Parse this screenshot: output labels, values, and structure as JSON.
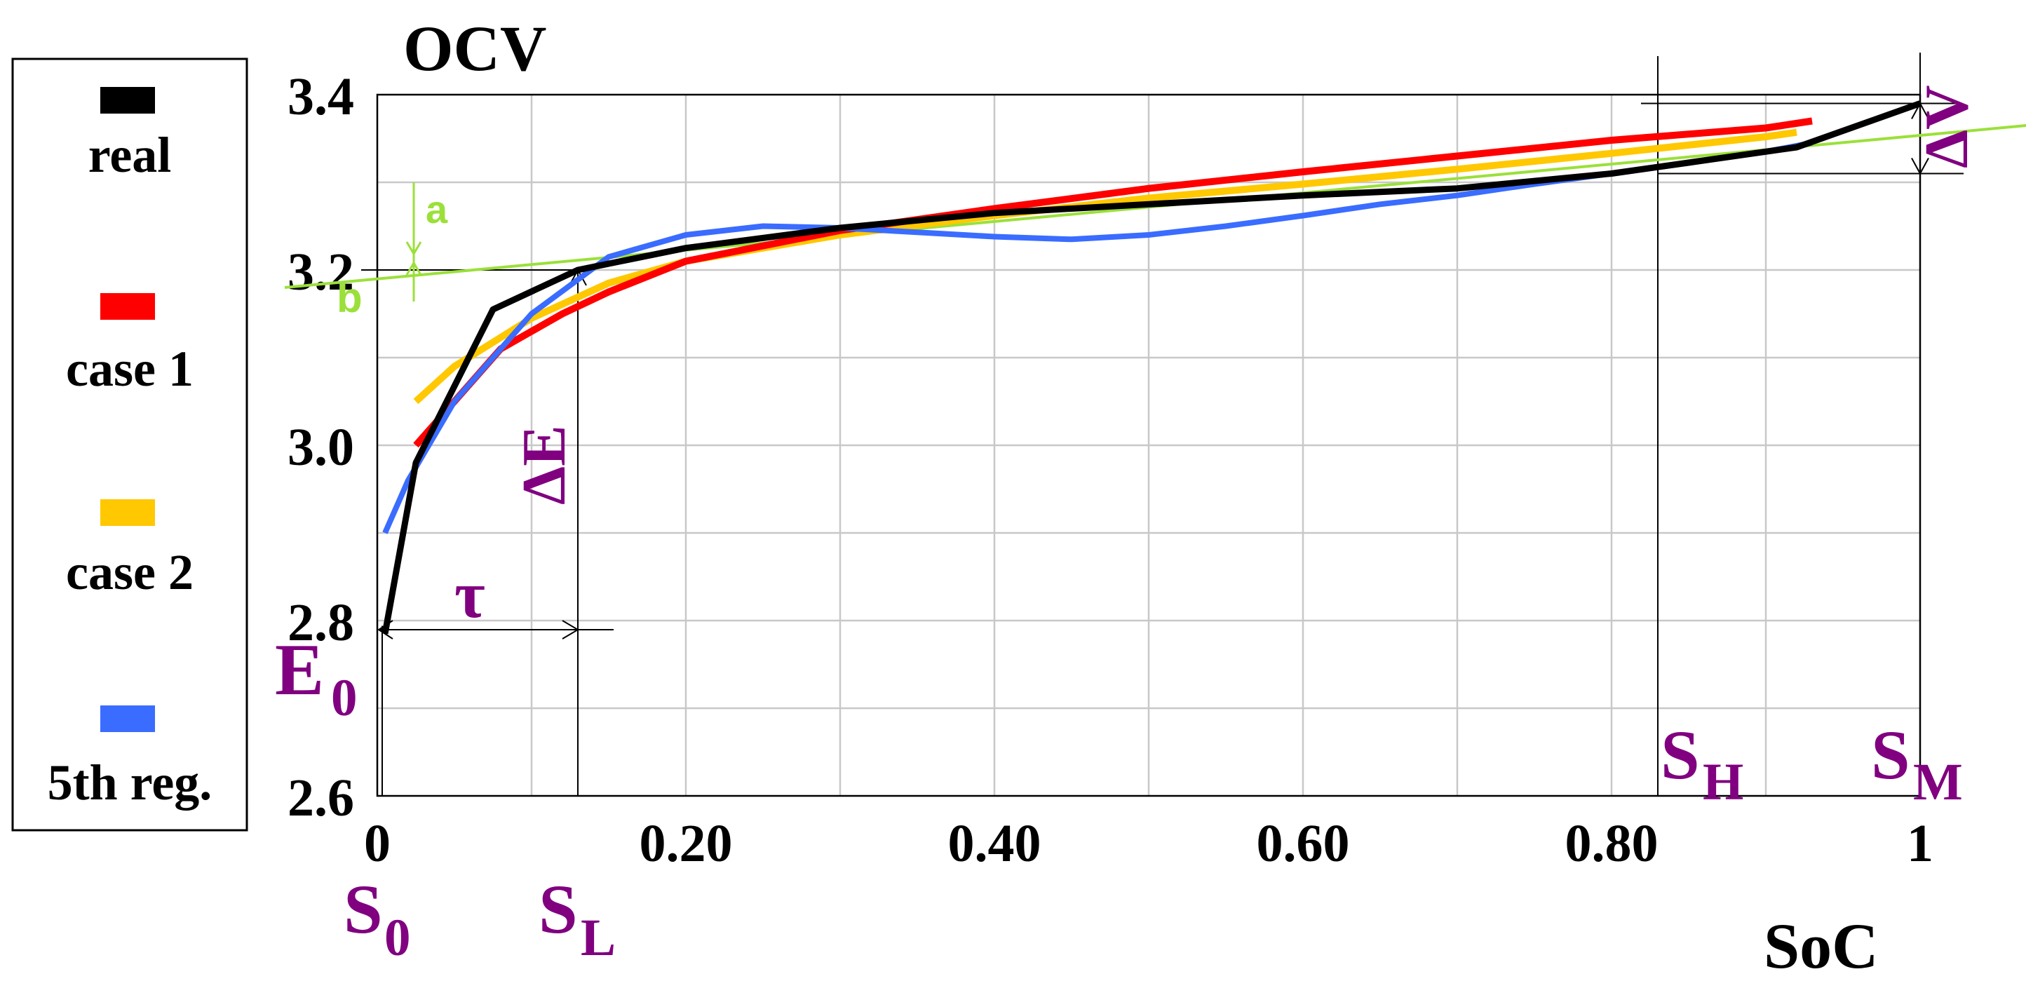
{
  "chart_data": {
    "type": "line",
    "title": "",
    "ylabel": "OCV",
    "xlabel": "SoC",
    "xlim": [
      0,
      1
    ],
    "ylim": [
      2.6,
      3.4
    ],
    "x_ticks": [
      {
        "value": 0,
        "label": "0"
      },
      {
        "value": 0.2,
        "label": "0.20"
      },
      {
        "value": 0.4,
        "label": "0.40"
      },
      {
        "value": 0.6,
        "label": "0.60"
      },
      {
        "value": 0.8,
        "label": "0.80"
      },
      {
        "value": 1,
        "label": "1"
      }
    ],
    "y_ticks": [
      {
        "value": 2.6,
        "label": "2.6"
      },
      {
        "value": 2.8,
        "label": "2.8"
      },
      {
        "value": 3.0,
        "label": "3.0"
      },
      {
        "value": 3.2,
        "label": "3.2"
      },
      {
        "value": 3.4,
        "label": "3.4"
      }
    ],
    "grid": true,
    "legend_position": "left",
    "series": [
      {
        "name": "real",
        "color": "#000000",
        "x": [
          0.005,
          0.025,
          0.075,
          0.13,
          0.2,
          0.3,
          0.4,
          0.5,
          0.6,
          0.7,
          0.8,
          0.92,
          1.0
        ],
        "y": [
          2.785,
          2.98,
          3.155,
          3.2,
          3.225,
          3.248,
          3.265,
          3.275,
          3.285,
          3.293,
          3.31,
          3.34,
          3.39
        ]
      },
      {
        "name": "case 1",
        "color": "#ff0000",
        "x": [
          0.025,
          0.05,
          0.08,
          0.12,
          0.15,
          0.2,
          0.3,
          0.4,
          0.5,
          0.6,
          0.7,
          0.8,
          0.9,
          0.93
        ],
        "y": [
          3.0,
          3.05,
          3.11,
          3.15,
          3.175,
          3.21,
          3.245,
          3.27,
          3.293,
          3.312,
          3.33,
          3.348,
          3.362,
          3.37
        ]
      },
      {
        "name": "case 2",
        "color": "#ffc800",
        "x": [
          0.025,
          0.05,
          0.1,
          0.15,
          0.2,
          0.3,
          0.4,
          0.5,
          0.6,
          0.7,
          0.8,
          0.9,
          0.92
        ],
        "y": [
          3.05,
          3.09,
          3.145,
          3.185,
          3.21,
          3.24,
          3.262,
          3.282,
          3.298,
          3.315,
          3.333,
          3.352,
          3.357
        ]
      },
      {
        "name": "5th reg.",
        "color": "#3a6cff",
        "x": [
          0.005,
          0.02,
          0.05,
          0.1,
          0.15,
          0.2,
          0.25,
          0.3,
          0.35,
          0.4,
          0.45,
          0.5,
          0.55,
          0.6,
          0.65,
          0.7,
          0.75,
          0.8,
          0.85,
          0.9,
          0.93
        ],
        "y": [
          2.9,
          2.96,
          3.05,
          3.15,
          3.215,
          3.24,
          3.25,
          3.248,
          3.243,
          3.238,
          3.235,
          3.24,
          3.25,
          3.262,
          3.275,
          3.285,
          3.298,
          3.31,
          3.322,
          3.335,
          3.345
        ]
      }
    ],
    "annotations": {
      "y_axis_top_label": "OCV",
      "x_axis_label": "SoC",
      "E0": "E",
      "E0_sub": "0",
      "S0": "S",
      "S0_sub": "0",
      "SL": "S",
      "SL_sub": "L",
      "SH": "S",
      "SH_sub": "H",
      "SM": "S",
      "SM_sub": "M",
      "tau": "τ",
      "delta_E": "ΔE",
      "delta_V": "ΔV",
      "a": "a",
      "b": "b",
      "S_L_value": 0.13,
      "S_H_value": 0.83,
      "S_M_value": 1.0,
      "E0_value": 2.79,
      "plateau_line": {
        "x1": -0.06,
        "y1": 3.18,
        "x2": 1.07,
        "y2": 3.365
      }
    },
    "legend": [
      "real",
      "case 1",
      "case 2",
      "5th reg."
    ]
  }
}
